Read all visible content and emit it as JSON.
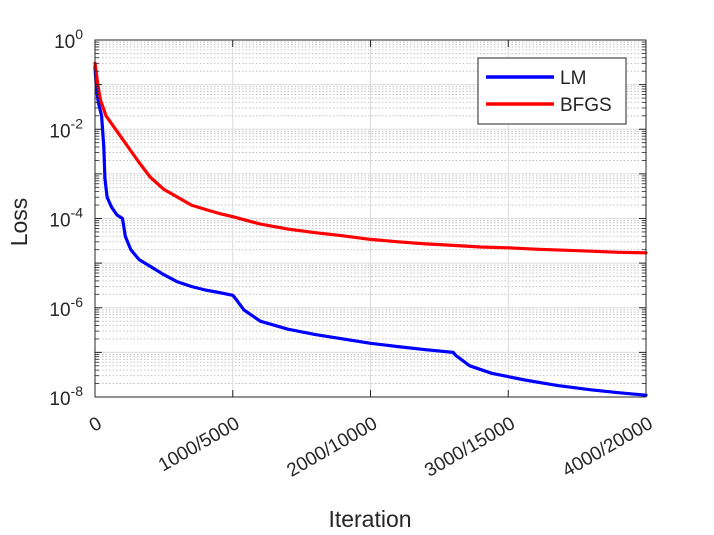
{
  "chart_data": {
    "type": "line",
    "title": "",
    "xlabel": "Iteration",
    "ylabel": "Loss",
    "x_range": [
      0,
      1
    ],
    "x_ticks": [
      {
        "pos": 0.0,
        "label": "0"
      },
      {
        "pos": 0.25,
        "label": "1000/5000"
      },
      {
        "pos": 0.5,
        "label": "2000/10000"
      },
      {
        "pos": 0.75,
        "label": "3000/15000"
      },
      {
        "pos": 1.0,
        "label": "4000/20000"
      }
    ],
    "y_scale": "log",
    "ylim": [
      1e-08,
      1
    ],
    "y_ticks": [
      {
        "value": 1,
        "base": "10",
        "exp": "0"
      },
      {
        "value": 0.01,
        "base": "10",
        "exp": "-2"
      },
      {
        "value": 0.0001,
        "base": "10",
        "exp": "-4"
      },
      {
        "value": 1e-06,
        "base": "10",
        "exp": "-6"
      },
      {
        "value": 1e-08,
        "base": "10",
        "exp": "-8"
      }
    ],
    "grid": true,
    "minor_grid": true,
    "legend_position": "top-right",
    "series": [
      {
        "name": "LM",
        "color": "#0000ff",
        "x_unit_note": "",
        "points": [
          [
            0,
            0.25
          ],
          [
            0.002,
            0.1
          ],
          [
            0.006,
            0.04
          ],
          [
            0.012,
            0.02
          ],
          [
            0.016,
            0.004
          ],
          [
            0.018,
            0.0008
          ],
          [
            0.022,
            0.0003
          ],
          [
            0.03,
            0.00018
          ],
          [
            0.04,
            0.00012
          ],
          [
            0.05,
            0.0001
          ],
          [
            0.055,
            4e-05
          ],
          [
            0.065,
            2e-05
          ],
          [
            0.08,
            1.2e-05
          ],
          [
            0.1,
            8.5e-06
          ],
          [
            0.125,
            5.5e-06
          ],
          [
            0.15,
            3.8e-06
          ],
          [
            0.175,
            3e-06
          ],
          [
            0.2,
            2.5e-06
          ],
          [
            0.225,
            2.2e-06
          ],
          [
            0.25,
            1.9e-06
          ],
          [
            0.255,
            1.6e-06
          ],
          [
            0.27,
            9e-07
          ],
          [
            0.3,
            5e-07
          ],
          [
            0.35,
            3.3e-07
          ],
          [
            0.4,
            2.5e-07
          ],
          [
            0.45,
            2e-07
          ],
          [
            0.5,
            1.6e-07
          ],
          [
            0.55,
            1.35e-07
          ],
          [
            0.6,
            1.15e-07
          ],
          [
            0.65,
            1e-07
          ],
          [
            0.655,
            8.5e-08
          ],
          [
            0.68,
            5e-08
          ],
          [
            0.72,
            3.4e-08
          ],
          [
            0.78,
            2.4e-08
          ],
          [
            0.84,
            1.8e-08
          ],
          [
            0.9,
            1.45e-08
          ],
          [
            0.95,
            1.25e-08
          ],
          [
            1.0,
            1.1e-08
          ]
        ]
      },
      {
        "name": "BFGS",
        "color": "#ff0000",
        "points": [
          [
            0,
            0.3
          ],
          [
            0.005,
            0.1
          ],
          [
            0.01,
            0.045
          ],
          [
            0.02,
            0.02
          ],
          [
            0.04,
            0.009
          ],
          [
            0.06,
            0.004
          ],
          [
            0.08,
            0.0018
          ],
          [
            0.1,
            0.00085
          ],
          [
            0.125,
            0.00045
          ],
          [
            0.15,
            0.0003
          ],
          [
            0.175,
            0.0002
          ],
          [
            0.2,
            0.00016
          ],
          [
            0.225,
            0.00013
          ],
          [
            0.25,
            0.00011
          ],
          [
            0.3,
            7.5e-05
          ],
          [
            0.35,
            5.8e-05
          ],
          [
            0.4,
            4.8e-05
          ],
          [
            0.45,
            4.1e-05
          ],
          [
            0.5,
            3.4e-05
          ],
          [
            0.55,
            3e-05
          ],
          [
            0.6,
            2.7e-05
          ],
          [
            0.65,
            2.5e-05
          ],
          [
            0.7,
            2.3e-05
          ],
          [
            0.75,
            2.2e-05
          ],
          [
            0.8,
            2.05e-05
          ],
          [
            0.85,
            1.95e-05
          ],
          [
            0.9,
            1.85e-05
          ],
          [
            0.95,
            1.75e-05
          ],
          [
            1.0,
            1.7e-05
          ]
        ]
      }
    ]
  }
}
